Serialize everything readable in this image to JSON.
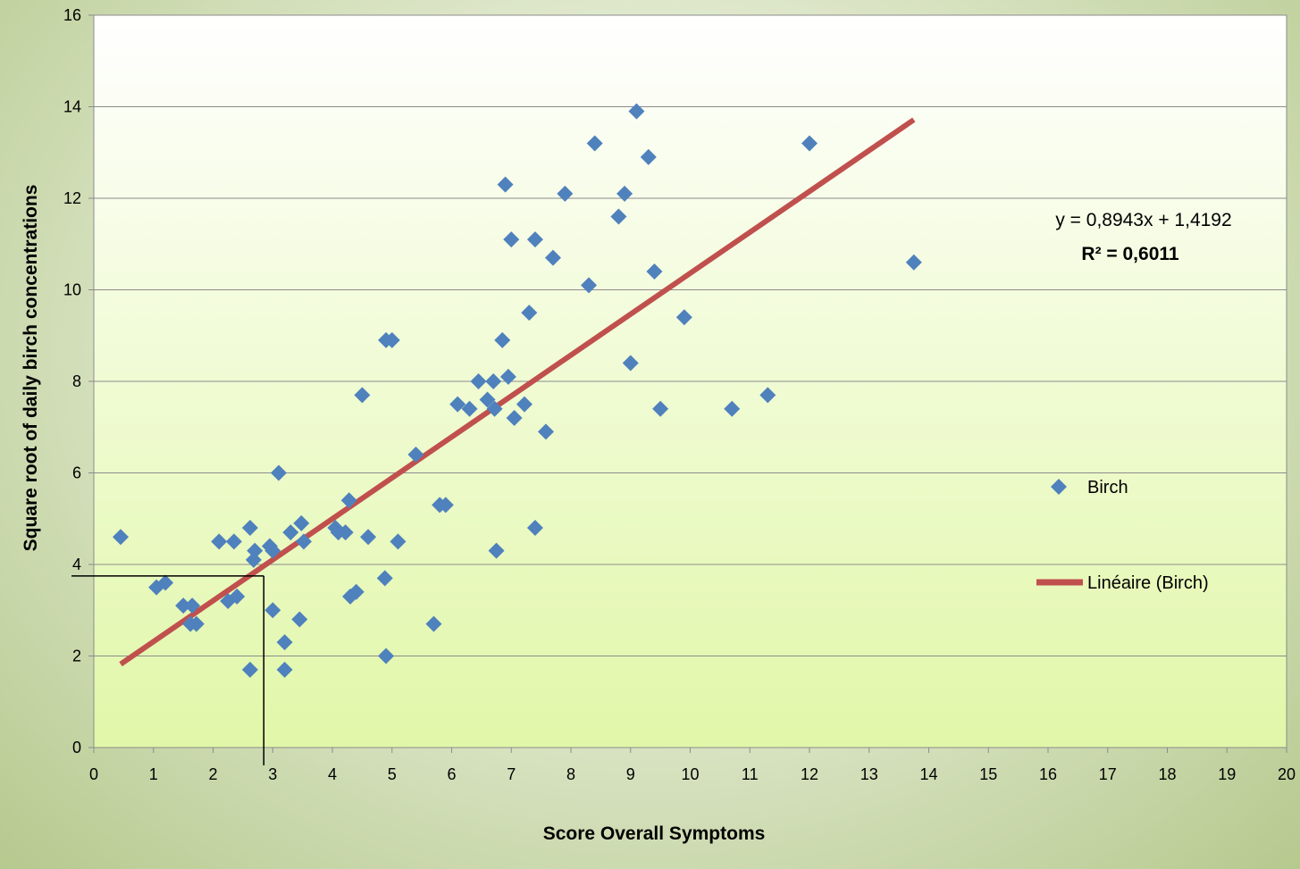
{
  "chart_data": {
    "type": "scatter",
    "xlabel": "Score Overall Symptoms",
    "ylabel": "Square root of daily birch concentrations",
    "xlim": [
      0,
      20
    ],
    "ylim": [
      0,
      16
    ],
    "x_ticks": [
      0,
      1,
      2,
      3,
      4,
      5,
      6,
      7,
      8,
      9,
      10,
      11,
      12,
      13,
      14,
      15,
      16,
      17,
      18,
      19,
      20
    ],
    "y_ticks": [
      0,
      2,
      4,
      6,
      8,
      10,
      12,
      14,
      16
    ],
    "grid": "horizontal",
    "colors": {
      "marker": "#4f81bd",
      "trendline": "#c0504d",
      "plot_gradient_top": "#ffffff",
      "plot_gradient_bottom": "#e1f7a8"
    },
    "series": [
      {
        "name": "Birch",
        "marker": "diamond",
        "points": [
          [
            0.45,
            4.6
          ],
          [
            1.05,
            3.5
          ],
          [
            1.2,
            3.6
          ],
          [
            1.5,
            3.1
          ],
          [
            1.65,
            3.1
          ],
          [
            1.62,
            2.7
          ],
          [
            1.72,
            2.7
          ],
          [
            2.1,
            4.5
          ],
          [
            2.35,
            4.5
          ],
          [
            2.25,
            3.2
          ],
          [
            2.4,
            3.3
          ],
          [
            2.62,
            4.8
          ],
          [
            2.7,
            4.3
          ],
          [
            2.68,
            4.1
          ],
          [
            2.62,
            1.7
          ],
          [
            2.95,
            4.4
          ],
          [
            3.0,
            4.3
          ],
          [
            3.0,
            3.0
          ],
          [
            3.1,
            6.0
          ],
          [
            3.2,
            2.3
          ],
          [
            3.2,
            1.7
          ],
          [
            3.3,
            4.7
          ],
          [
            3.48,
            4.9
          ],
          [
            3.52,
            4.5
          ],
          [
            3.45,
            2.8
          ],
          [
            4.05,
            4.8
          ],
          [
            4.1,
            4.7
          ],
          [
            4.22,
            4.7
          ],
          [
            4.28,
            5.4
          ],
          [
            4.3,
            3.3
          ],
          [
            4.4,
            3.4
          ],
          [
            4.5,
            7.7
          ],
          [
            4.6,
            4.6
          ],
          [
            4.88,
            3.7
          ],
          [
            4.9,
            8.9
          ],
          [
            5.0,
            8.9
          ],
          [
            5.1,
            4.5
          ],
          [
            4.9,
            2.0
          ],
          [
            5.4,
            6.4
          ],
          [
            5.7,
            2.7
          ],
          [
            5.8,
            5.3
          ],
          [
            5.9,
            5.3
          ],
          [
            6.1,
            7.5
          ],
          [
            6.3,
            7.4
          ],
          [
            6.45,
            8.0
          ],
          [
            6.6,
            7.6
          ],
          [
            6.7,
            8.0
          ],
          [
            6.72,
            7.4
          ],
          [
            6.75,
            4.3
          ],
          [
            6.85,
            8.9
          ],
          [
            6.9,
            12.3
          ],
          [
            6.95,
            8.1
          ],
          [
            7.0,
            11.1
          ],
          [
            7.05,
            7.2
          ],
          [
            7.22,
            7.5
          ],
          [
            7.3,
            9.5
          ],
          [
            7.4,
            11.1
          ],
          [
            7.4,
            4.8
          ],
          [
            7.58,
            6.9
          ],
          [
            7.7,
            10.7
          ],
          [
            7.9,
            12.1
          ],
          [
            8.3,
            10.1
          ],
          [
            8.4,
            13.2
          ],
          [
            8.8,
            11.6
          ],
          [
            8.9,
            12.1
          ],
          [
            9.0,
            8.4
          ],
          [
            9.1,
            13.9
          ],
          [
            9.3,
            12.9
          ],
          [
            9.4,
            10.4
          ],
          [
            9.5,
            7.4
          ],
          [
            9.9,
            9.4
          ],
          [
            10.7,
            7.4
          ],
          [
            11.3,
            7.7
          ],
          [
            12.0,
            13.2
          ],
          [
            13.75,
            10.6
          ]
        ]
      },
      {
        "name": "Linéaire (Birch)",
        "type": "trendline",
        "slope": 0.8943,
        "intercept": 1.4192,
        "x_range": [
          0.45,
          13.75
        ]
      }
    ],
    "annotations": {
      "equation": "y = 0,8943x + 1,4192",
      "r_squared": "R² = 0,6011",
      "reference_point": {
        "x": 2.85,
        "y": 3.75
      }
    },
    "legend": {
      "position": "right",
      "items": [
        "Birch",
        "Linéaire (Birch)"
      ]
    }
  }
}
